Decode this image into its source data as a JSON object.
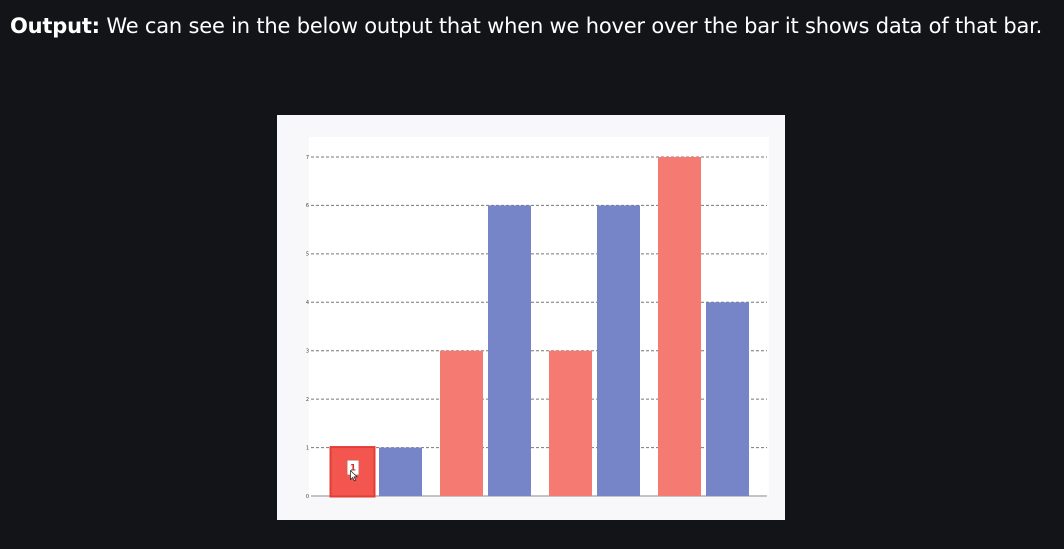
{
  "caption": {
    "lead": "Output:",
    "text": "We can see in the below output that when we hover over the bar it shows data of that bar."
  },
  "chart_data": {
    "type": "bar",
    "categories": [
      "",
      "",
      "",
      ""
    ],
    "series": [
      {
        "values": [
          1,
          3,
          3,
          7
        ],
        "color": "#f47a72"
      },
      {
        "values": [
          1,
          6,
          6,
          4
        ],
        "color": "#7684c8"
      }
    ],
    "ylim": [
      0,
      7
    ],
    "yticks": [
      "0",
      "1",
      "2",
      "3",
      "4",
      "5",
      "6",
      "7"
    ],
    "grid": true,
    "grid_style": "dashed",
    "hovered": {
      "series": 0,
      "category": 0,
      "tooltip": "1"
    }
  }
}
